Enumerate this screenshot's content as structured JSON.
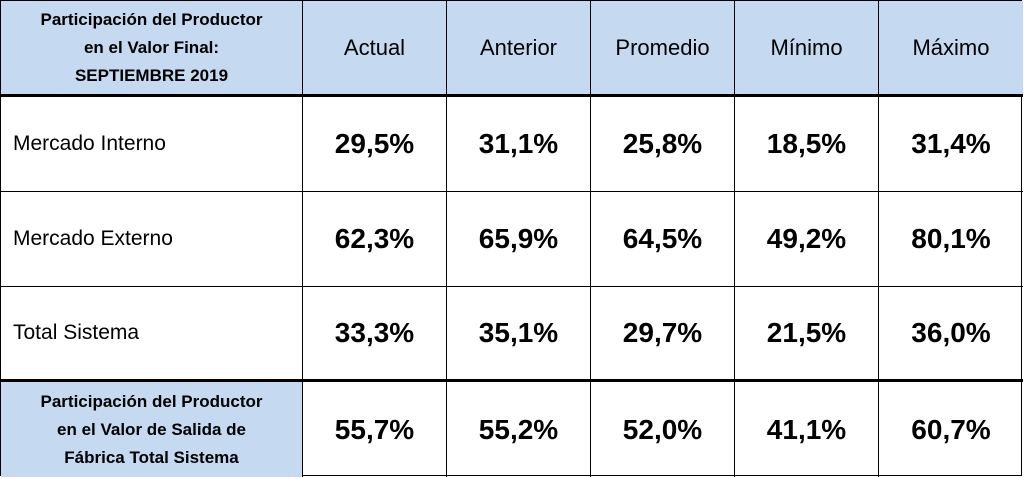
{
  "table": {
    "header": {
      "label_lines": [
        "Participación del Productor",
        "en el Valor Final:",
        "SEPTIEMBRE 2019"
      ],
      "columns": [
        "Actual",
        "Anterior",
        "Promedio",
        "Mínimo",
        "Máximo"
      ]
    },
    "rows": [
      {
        "label_lines": [
          "Mercado Interno"
        ],
        "values": [
          "29,5%",
          "31,1%",
          "25,8%",
          "18,5%",
          "31,4%"
        ]
      },
      {
        "label_lines": [
          "Mercado Externo"
        ],
        "values": [
          "62,3%",
          "65,9%",
          "64,5%",
          "49,2%",
          "80,1%"
        ]
      },
      {
        "label_lines": [
          "Total Sistema"
        ],
        "values": [
          "33,3%",
          "35,1%",
          "29,7%",
          "21,5%",
          "36,0%"
        ]
      },
      {
        "label_lines": [
          "Participación del Productor",
          "en el Valor de Salida de",
          "Fábrica Total Sistema"
        ],
        "values": [
          "55,7%",
          "55,2%",
          "52,0%",
          "41,1%",
          "60,7%"
        ]
      }
    ]
  }
}
